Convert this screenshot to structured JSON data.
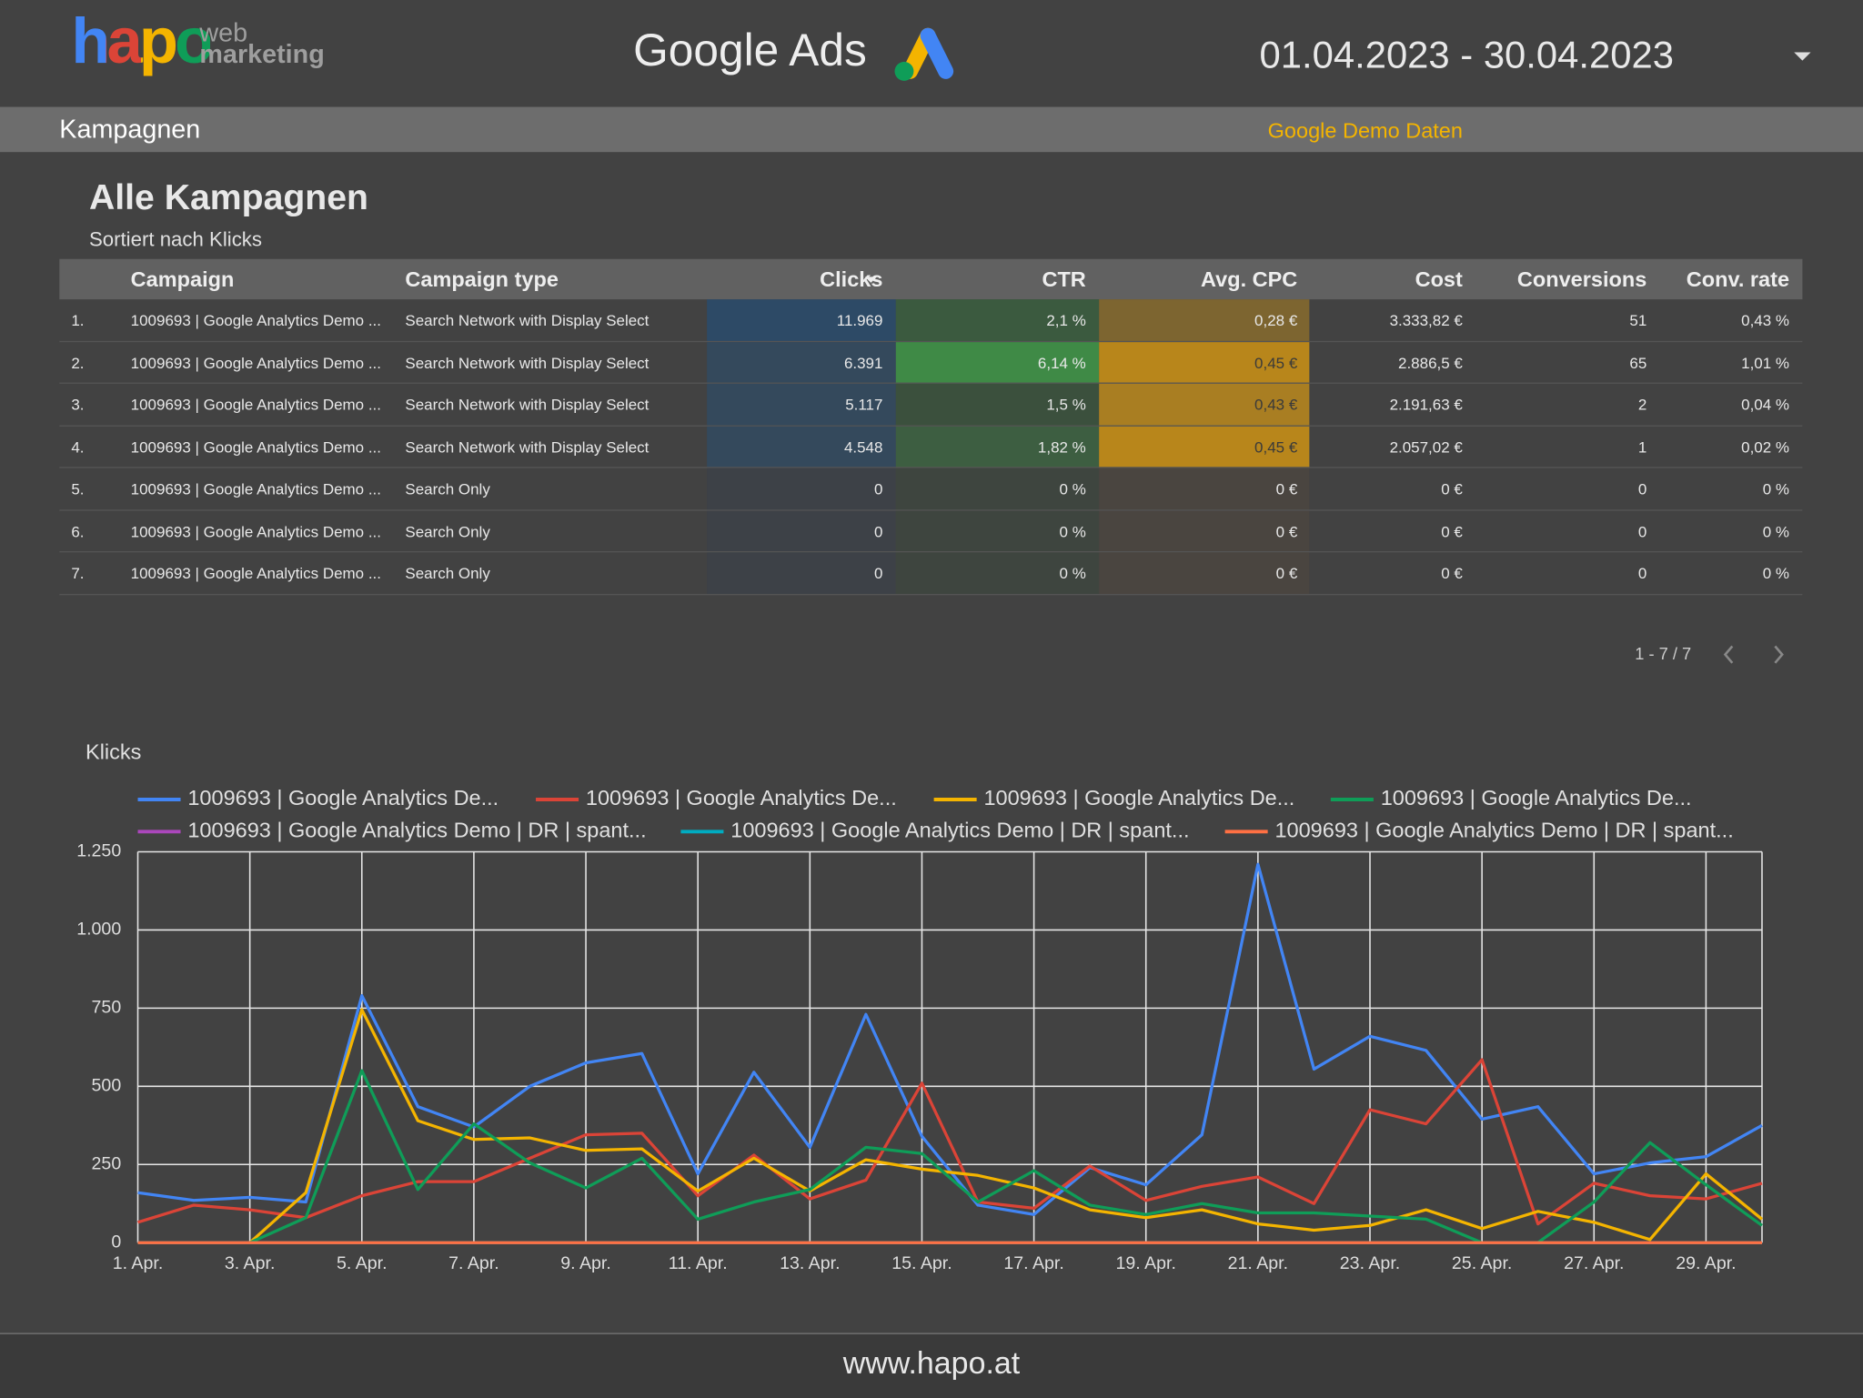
{
  "header": {
    "logo_main": "hapo",
    "logo_sub_1": "web",
    "logo_sub_2": "marketing",
    "title": "Google Ads",
    "date_range": "01.04.2023 - 30.04.2023"
  },
  "section": {
    "title": "Kampagnen",
    "note": "Google Demo Daten"
  },
  "table": {
    "title": "Alle Kampagnen",
    "subtitle": "Sortiert nach Klicks",
    "columns": [
      "Campaign",
      "Campaign type",
      "Clicks",
      "CTR",
      "Avg. CPC",
      "Cost",
      "Conversions",
      "Conv. rate"
    ],
    "rows": [
      [
        "1.",
        "1009693 | Google Analytics Demo ...",
        "Search Network with Display Select",
        "11.969",
        "2,1 %",
        "0,28 €",
        "3.333,82 €",
        "51",
        "0,43 %"
      ],
      [
        "2.",
        "1009693 | Google Analytics Demo ...",
        "Search Network with Display Select",
        "6.391",
        "6,14 %",
        "0,45 €",
        "2.886,5 €",
        "65",
        "1,01 %"
      ],
      [
        "3.",
        "1009693 | Google Analytics Demo ...",
        "Search Network with Display Select",
        "5.117",
        "1,5 %",
        "0,43 €",
        "2.191,63 €",
        "2",
        "0,04 %"
      ],
      [
        "4.",
        "1009693 | Google Analytics Demo ...",
        "Search Network with Display Select",
        "4.548",
        "1,82 %",
        "0,45 €",
        "2.057,02 €",
        "1",
        "0,02 %"
      ],
      [
        "5.",
        "1009693 | Google Analytics Demo ...",
        "Search Only",
        "0",
        "0 %",
        "0 €",
        "0 €",
        "0",
        "0 %"
      ],
      [
        "6.",
        "1009693 | Google Analytics Demo ...",
        "Search Only",
        "0",
        "0 %",
        "0 €",
        "0 €",
        "0",
        "0 %"
      ],
      [
        "7.",
        "1009693 | Google Analytics Demo ...",
        "Search Only",
        "0",
        "0 %",
        "0 €",
        "0 €",
        "0",
        "0 %"
      ]
    ],
    "pagination": "1 - 7 / 7"
  },
  "chart_data": {
    "type": "line",
    "title": "Klicks",
    "categories": [
      "1. Apr.",
      null,
      "3. Apr.",
      null,
      "5. Apr.",
      null,
      "7. Apr.",
      null,
      "9. Apr.",
      null,
      "11. Apr.",
      null,
      "13. Apr.",
      null,
      "15. Apr.",
      null,
      "17. Apr.",
      null,
      "19. Apr.",
      null,
      "21. Apr.",
      null,
      "23. Apr.",
      null,
      "25. Apr.",
      null,
      "27. Apr.",
      null,
      "29. Apr.",
      null
    ],
    "ylim": [
      0,
      1250
    ],
    "yticks": [
      0,
      250,
      500,
      750,
      {
        "value": 1000,
        "label": "1.000"
      },
      {
        "value": 1250,
        "label": "1.250"
      }
    ],
    "grid": true,
    "series": [
      {
        "name": "1009693 | Google Analytics De...",
        "color": "#4285f4",
        "values": [
          160,
          135,
          145,
          130,
          790,
          435,
          370,
          500,
          575,
          605,
          220,
          545,
          305,
          730,
          340,
          120,
          90,
          240,
          185,
          345,
          1210,
          555,
          660,
          615,
          395,
          435,
          220,
          255,
          275,
          375
        ]
      },
      {
        "name": "1009693 | Google Analytics De...",
        "color": "#db4437",
        "values": [
          65,
          120,
          105,
          80,
          150,
          195,
          195,
          270,
          345,
          350,
          150,
          280,
          140,
          200,
          510,
          130,
          110,
          245,
          135,
          180,
          210,
          125,
          425,
          380,
          585,
          60,
          190,
          150,
          140,
          190
        ]
      },
      {
        "name": "1009693 | Google Analytics De...",
        "color": "#f4b400",
        "values": [
          0,
          0,
          0,
          160,
          745,
          390,
          330,
          335,
          295,
          300,
          165,
          270,
          165,
          265,
          235,
          215,
          175,
          105,
          80,
          105,
          60,
          40,
          55,
          105,
          45,
          100,
          65,
          10,
          220,
          75
        ]
      },
      {
        "name": "1009693 | Google Analytics De...",
        "color": "#0f9d58",
        "values": [
          0,
          0,
          0,
          80,
          550,
          170,
          380,
          255,
          175,
          270,
          75,
          130,
          170,
          305,
          285,
          130,
          230,
          120,
          90,
          125,
          95,
          95,
          85,
          75,
          0,
          0,
          130,
          320,
          185,
          55
        ]
      },
      {
        "name": "1009693 | Google Analytics Demo | DR | spant...",
        "color": "#ab47bc",
        "values": [
          0,
          0,
          0,
          0,
          0,
          0,
          0,
          0,
          0,
          0,
          0,
          0,
          0,
          0,
          0,
          0,
          0,
          0,
          0,
          0,
          0,
          0,
          0,
          0,
          0,
          0,
          0,
          0,
          0,
          0
        ]
      },
      {
        "name": "1009693 | Google Analytics Demo | DR | spant...",
        "color": "#00acc1",
        "values": [
          0,
          0,
          0,
          0,
          0,
          0,
          0,
          0,
          0,
          0,
          0,
          0,
          0,
          0,
          0,
          0,
          0,
          0,
          0,
          0,
          0,
          0,
          0,
          0,
          0,
          0,
          0,
          0,
          0,
          0
        ]
      },
      {
        "name": "1009693 | Google Analytics Demo | DR | spant...",
        "color": "#ff7043",
        "values": [
          0,
          0,
          0,
          0,
          0,
          0,
          0,
          0,
          0,
          0,
          0,
          0,
          0,
          0,
          0,
          0,
          0,
          0,
          0,
          0,
          0,
          0,
          0,
          0,
          0,
          0,
          0,
          0,
          0,
          0
        ]
      }
    ]
  },
  "footer": {
    "url": "www.hapo.at"
  }
}
